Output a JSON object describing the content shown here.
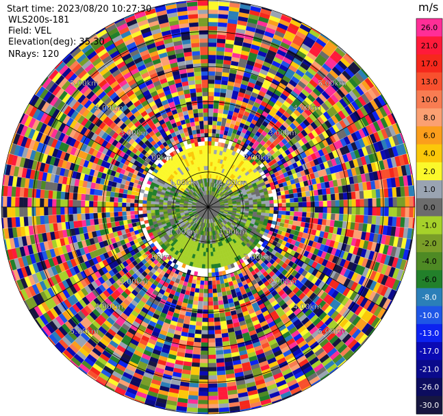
{
  "header": {
    "start_time": "Start time: 2023/08/20 10:27:30",
    "system": "WLS200s-181",
    "field": "Field: VEL",
    "elevation": "Elevation(deg): 35.30",
    "nrays": "NRays: 120"
  },
  "colorbar": {
    "unit": "m/s",
    "bins": [
      {
        "label": "26.0",
        "color": "#ff2e97"
      },
      {
        "label": "21.0",
        "color": "#ff1a3a"
      },
      {
        "label": "17.0",
        "color": "#f5281c"
      },
      {
        "label": "13.0",
        "color": "#f8502e"
      },
      {
        "label": "10.0",
        "color": "#f87c52"
      },
      {
        "label": "8.0",
        "color": "#fba072"
      },
      {
        "label": "6.0",
        "color": "#fb9e1c"
      },
      {
        "label": "4.0",
        "color": "#fbc80a"
      },
      {
        "label": "2.0",
        "color": "#fbf82b"
      },
      {
        "label": "1.0",
        "color": "#9aa4b2"
      },
      {
        "label": "0.0",
        "color": "#6c6c6c"
      },
      {
        "label": "-1.0",
        "color": "#a6d12a"
      },
      {
        "label": "-2.0",
        "color": "#7a9e28"
      },
      {
        "label": "-4.0",
        "color": "#4e8a24"
      },
      {
        "label": "-6.0",
        "color": "#22802a"
      },
      {
        "label": "-8.0",
        "color": "#2b7fb8"
      },
      {
        "label": "-10.0",
        "color": "#1e56e6"
      },
      {
        "label": "-13.0",
        "color": "#0c22f0"
      },
      {
        "label": "-17.0",
        "color": "#0a0ab4"
      },
      {
        "label": "-21.0",
        "color": "#0a0a8c"
      },
      {
        "label": "-26.0",
        "color": "#0c0c5e"
      },
      {
        "label": "-30.0",
        "color": "#161640"
      }
    ]
  },
  "chart_data": {
    "type": "heatmap",
    "projection": "polar",
    "range_rings_km": [
      {
        "label": "1.00km",
        "km": 1
      },
      {
        "label": "2.00km",
        "km": 2
      },
      {
        "label": "3.00km",
        "km": 3
      },
      {
        "label": "4.00km",
        "km": 4
      },
      {
        "label": "5.00km",
        "km": 5
      }
    ],
    "max_range_km": 5.9,
    "nrays": 120,
    "spokes_deg": [
      0,
      30,
      60,
      90,
      120,
      150,
      180,
      210,
      240,
      270,
      300,
      330
    ],
    "clim": [
      -30.0,
      26.0
    ],
    "grid": true
  }
}
